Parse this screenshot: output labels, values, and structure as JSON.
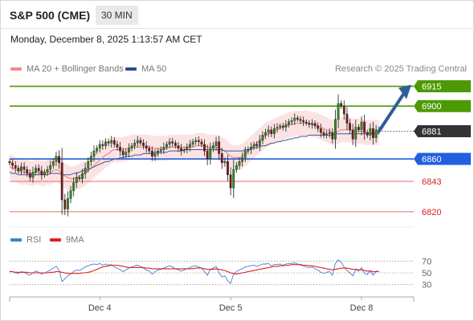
{
  "header": {
    "title": "S&P 500 (CME)",
    "timeframe": "30 MIN",
    "datetime": "Monday, December 8, 2025 1:13:57 AM CET"
  },
  "legend_main": [
    {
      "label": "MA 20 + Bollinger Bands",
      "color": "#f28b8b"
    },
    {
      "label": "MA 50",
      "color": "#2c4f8a"
    }
  ],
  "credit": "Research © 2025 Trading Central",
  "legend_rsi": [
    {
      "label": "RSI",
      "color": "#4a7bd0"
    },
    {
      "label": "9MA",
      "color": "#e02020"
    }
  ],
  "chart_data": {
    "type": "candlestick",
    "ylim": [
      6812,
      6922
    ],
    "levels": [
      {
        "value": 6915,
        "label": "6915",
        "kind": "resistance",
        "color": "#4e9a06"
      },
      {
        "value": 6900,
        "label": "6900",
        "kind": "resistance",
        "color": "#4e9a06"
      },
      {
        "value": 6881,
        "label": "6881",
        "kind": "last",
        "color": "#333333"
      },
      {
        "value": 6860,
        "label": "6860",
        "kind": "pivot",
        "color": "#1f5fe0"
      },
      {
        "value": 6843,
        "label": "6843",
        "kind": "support",
        "color": "#e66b6b"
      },
      {
        "value": 6820,
        "label": "6820",
        "kind": "support",
        "color": "#e66b6b"
      }
    ],
    "x_ticks": [
      {
        "label": "Dec 4",
        "index": 31
      },
      {
        "label": "Dec 5",
        "index": 76
      },
      {
        "label": "Dec 8",
        "index": 121
      }
    ],
    "candles": [
      6857,
      6855,
      6853,
      6851,
      6854,
      6852,
      6849,
      6846,
      6850,
      6853,
      6851,
      6848,
      6850,
      6852,
      6855,
      6858,
      6862,
      6857,
      6829,
      6822,
      6830,
      6836,
      6842,
      6846,
      6845,
      6849,
      6853,
      6858,
      6862,
      6866,
      6868,
      6871,
      6870,
      6873,
      6872,
      6874,
      6871,
      6869,
      6866,
      6863,
      6865,
      6868,
      6870,
      6872,
      6874,
      6872,
      6870,
      6868,
      6866,
      6862,
      6864,
      6866,
      6867,
      6869,
      6871,
      6873,
      6872,
      6870,
      6868,
      6866,
      6867,
      6869,
      6871,
      6873,
      6874,
      6873,
      6871,
      6866,
      6860,
      6868,
      6870,
      6873,
      6864,
      6857,
      6858,
      6848,
      6838,
      6852,
      6855,
      6858,
      6861,
      6866,
      6867,
      6869,
      6871,
      6870,
      6874,
      6878,
      6880,
      6882,
      6879,
      6883,
      6884,
      6885,
      6884,
      6886,
      6888,
      6889,
      6891,
      6890,
      6889,
      6888,
      6887,
      6886,
      6887,
      6885,
      6883,
      6880,
      6878,
      6879,
      6880,
      6875,
      6890,
      6902,
      6900,
      6894,
      6887,
      6882,
      6875,
      6884,
      6882,
      6888,
      6880,
      6878,
      6883,
      6876,
      6882,
      6881
    ],
    "ma20": [
      6854,
      6853,
      6852,
      6851,
      6850,
      6850,
      6850,
      6849,
      6849,
      6850,
      6850,
      6849,
      6849,
      6850,
      6850,
      6851,
      6852,
      6851,
      6849,
      6847,
      6846,
      6845,
      6845,
      6846,
      6847,
      6848,
      6849,
      6851,
      6853,
      6855,
      6857,
      6859,
      6861,
      6863,
      6864,
      6866,
      6867,
      6867,
      6867,
      6867,
      6868,
      6868,
      6869,
      6869,
      6869,
      6869,
      6869,
      6869,
      6869,
      6868,
      6868,
      6868,
      6868,
      6868,
      6868,
      6869,
      6869,
      6869,
      6869,
      6869,
      6869,
      6869,
      6869,
      6869,
      6870,
      6870,
      6870,
      6870,
      6869,
      6869,
      6869,
      6869,
      6868,
      6867,
      6866,
      6864,
      6862,
      6861,
      6861,
      6861,
      6862,
      6864,
      6866,
      6868,
      6870,
      6872,
      6874,
      6876,
      6878,
      6879,
      6880,
      6881,
      6882,
      6883,
      6884,
      6885,
      6886,
      6886,
      6887,
      6887,
      6887,
      6887,
      6887,
      6887,
      6886,
      6886,
      6885,
      6884,
      6883,
      6882,
      6881,
      6880,
      6880,
      6881,
      6882,
      6882,
      6882,
      6882,
      6881,
      6881,
      6881,
      6881,
      6880,
      6880,
      6880,
      6880,
      6880,
      6880
    ],
    "ma50": [
      6850,
      6849,
      6849,
      6848,
      6848,
      6848,
      6848,
      6848,
      6848,
      6848,
      6848,
      6848,
      6848,
      6848,
      6849,
      6849,
      6849,
      6849,
      6848,
      6848,
      6848,
      6848,
      6849,
      6849,
      6850,
      6851,
      6851,
      6852,
      6853,
      6854,
      6855,
      6856,
      6857,
      6858,
      6858,
      6859,
      6860,
      6860,
      6861,
      6861,
      6862,
      6862,
      6862,
      6863,
      6863,
      6863,
      6864,
      6864,
      6864,
      6864,
      6865,
      6865,
      6865,
      6865,
      6865,
      6866,
      6866,
      6866,
      6866,
      6866,
      6867,
      6867,
      6867,
      6867,
      6867,
      6867,
      6867,
      6867,
      6867,
      6867,
      6867,
      6867,
      6867,
      6867,
      6866,
      6866,
      6866,
      6866,
      6866,
      6866,
      6866,
      6867,
      6867,
      6868,
      6868,
      6869,
      6869,
      6870,
      6870,
      6871,
      6872,
      6872,
      6873,
      6873,
      6874,
      6874,
      6875,
      6875,
      6876,
      6876,
      6877,
      6877,
      6877,
      6878,
      6878,
      6878,
      6878,
      6878,
      6878,
      6878,
      6878,
      6878,
      6879,
      6879,
      6879,
      6879,
      6879,
      6879,
      6879,
      6879,
      6879,
      6879,
      6879,
      6879,
      6879,
      6879,
      6879,
      6879
    ],
    "rsi": {
      "ylim": [
        20,
        80
      ],
      "ticks": [
        70,
        50,
        30
      ],
      "values": [
        53,
        52,
        50,
        49,
        52,
        51,
        48,
        46,
        50,
        53,
        51,
        48,
        50,
        52,
        55,
        58,
        61,
        55,
        35,
        40,
        45,
        48,
        52,
        55,
        54,
        57,
        60,
        62,
        64,
        65,
        64,
        66,
        63,
        65,
        63,
        64,
        60,
        58,
        55,
        52,
        55,
        58,
        60,
        62,
        63,
        61,
        58,
        55,
        53,
        48,
        52,
        55,
        56,
        58,
        60,
        62,
        60,
        57,
        55,
        53,
        55,
        57,
        59,
        61,
        62,
        60,
        58,
        52,
        46,
        56,
        58,
        61,
        50,
        43,
        45,
        36,
        32,
        48,
        52,
        55,
        57,
        60,
        61,
        62,
        63,
        61,
        63,
        65,
        65,
        66,
        62,
        64,
        64,
        65,
        63,
        65,
        66,
        66,
        67,
        65,
        63,
        62,
        60,
        59,
        60,
        57,
        55,
        51,
        49,
        51,
        52,
        46,
        66,
        72,
        68,
        60,
        54,
        50,
        45,
        56,
        53,
        59,
        49,
        47,
        54,
        46,
        53,
        52
      ],
      "ma9": [
        52,
        52,
        51,
        51,
        51,
        51,
        51,
        50,
        50,
        50,
        50,
        50,
        50,
        50,
        51,
        51,
        52,
        52,
        51,
        50,
        49,
        49,
        49,
        49,
        49,
        50,
        50,
        51,
        52,
        54,
        56,
        58,
        60,
        61,
        62,
        63,
        63,
        63,
        62,
        61,
        60,
        59,
        59,
        59,
        59,
        59,
        59,
        58,
        58,
        57,
        57,
        57,
        57,
        57,
        57,
        57,
        57,
        57,
        57,
        57,
        57,
        57,
        57,
        57,
        58,
        58,
        58,
        57,
        56,
        56,
        56,
        57,
        56,
        55,
        54,
        52,
        50,
        49,
        48,
        49,
        50,
        51,
        52,
        53,
        54,
        55,
        56,
        57,
        58,
        59,
        60,
        61,
        61,
        62,
        62,
        63,
        63,
        64,
        64,
        64,
        64,
        63,
        63,
        62,
        62,
        61,
        60,
        59,
        58,
        57,
        56,
        55,
        56,
        57,
        58,
        58,
        58,
        57,
        56,
        56,
        55,
        55,
        54,
        53,
        53,
        52,
        52,
        52
      ]
    }
  }
}
